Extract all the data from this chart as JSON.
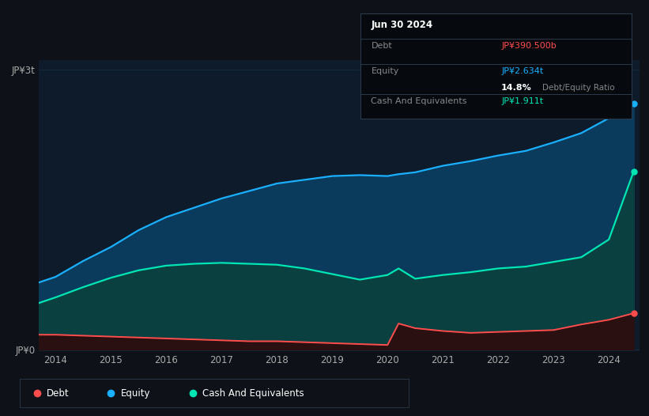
{
  "bg_color": "#0e1117",
  "plot_bg_color": "#0d1b2a",
  "grid_color": "#1a3040",
  "debt_color": "#ff4d4d",
  "equity_color": "#1ab0ff",
  "cash_color": "#00e5b4",
  "fill_equity_color": "#0a3a5c",
  "fill_cash_color": "#0a4040",
  "fill_debt_color": "#2a1010",
  "ylabel_top": "JP¥3t",
  "ylabel_bottom": "JP¥0",
  "x_ticks": [
    2014,
    2015,
    2016,
    2017,
    2018,
    2019,
    2020,
    2021,
    2022,
    2023,
    2024
  ],
  "tooltip": {
    "date": "Jun 30 2024",
    "debt_label": "Debt",
    "debt_value": "JP¥390.500b",
    "equity_label": "Equity",
    "equity_value": "JP¥2.634t",
    "ratio_value": "14.8%",
    "ratio_label": "Debt/Equity Ratio",
    "cash_label": "Cash And Equivalents",
    "cash_value": "JP¥1.911t"
  },
  "years": [
    2013.7,
    2014.0,
    2014.5,
    2015.0,
    2015.5,
    2016.0,
    2016.5,
    2017.0,
    2017.5,
    2018.0,
    2018.5,
    2019.0,
    2019.5,
    2020.0,
    2020.2,
    2020.5,
    2021.0,
    2021.5,
    2022.0,
    2022.5,
    2023.0,
    2023.5,
    2024.0,
    2024.45
  ],
  "equity": [
    0.72,
    0.78,
    0.95,
    1.1,
    1.28,
    1.42,
    1.52,
    1.62,
    1.7,
    1.78,
    1.82,
    1.86,
    1.87,
    1.86,
    1.88,
    1.9,
    1.97,
    2.02,
    2.08,
    2.13,
    2.22,
    2.32,
    2.48,
    2.634
  ],
  "cash": [
    0.5,
    0.56,
    0.67,
    0.77,
    0.85,
    0.9,
    0.92,
    0.93,
    0.92,
    0.91,
    0.87,
    0.81,
    0.75,
    0.8,
    0.87,
    0.76,
    0.8,
    0.83,
    0.87,
    0.89,
    0.94,
    0.99,
    1.18,
    1.911
  ],
  "debt": [
    0.16,
    0.16,
    0.15,
    0.14,
    0.13,
    0.12,
    0.11,
    0.1,
    0.09,
    0.09,
    0.08,
    0.07,
    0.06,
    0.05,
    0.28,
    0.23,
    0.2,
    0.18,
    0.19,
    0.2,
    0.21,
    0.27,
    0.32,
    0.3905
  ],
  "legend_items": [
    {
      "label": "Debt",
      "color": "#ff4d4d"
    },
    {
      "label": "Equity",
      "color": "#1ab0ff"
    },
    {
      "label": "Cash And Equivalents",
      "color": "#00e5b4"
    }
  ]
}
